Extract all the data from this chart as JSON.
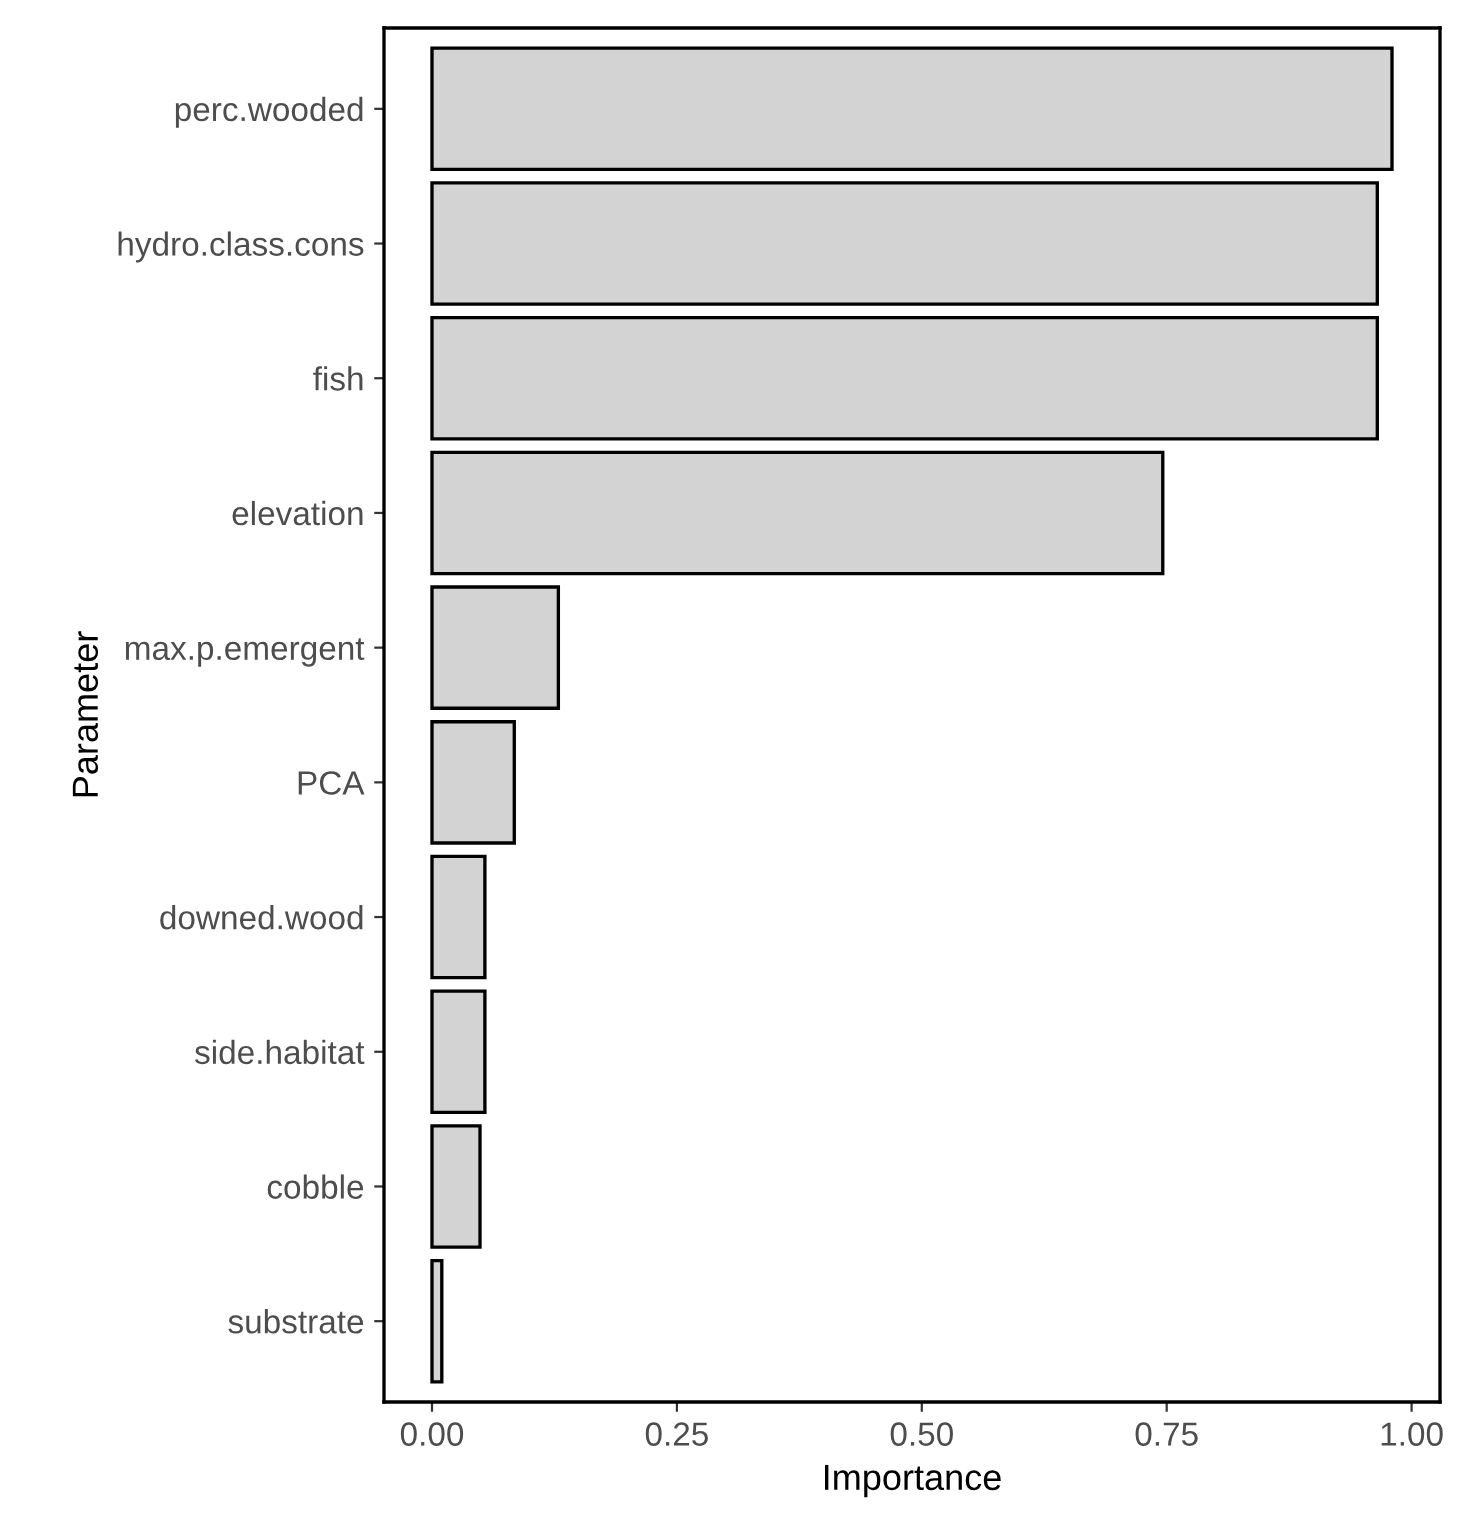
{
  "chart_data": {
    "type": "bar",
    "orientation": "horizontal",
    "xlabel": "Importance",
    "ylabel": "Parameter",
    "categories": [
      "perc.wooded",
      "hydro.class.cons",
      "fish",
      "elevation",
      "max.p.emergent",
      "PCA",
      "downed.wood",
      "side.habitat",
      "cobble",
      "substrate"
    ],
    "values": [
      0.98,
      0.965,
      0.965,
      0.746,
      0.129,
      0.084,
      0.054,
      0.054,
      0.049,
      0.01
    ],
    "color": "#d3d3d3",
    "xlim": [
      -0.049,
      1.029
    ],
    "xticks": [
      {
        "value": 0,
        "label": "0.00"
      },
      {
        "value": 0.25,
        "label": "0.25"
      },
      {
        "value": 0.5,
        "label": "0.50"
      },
      {
        "value": 0.75,
        "label": "0.75"
      },
      {
        "value": 1,
        "label": "1.00"
      }
    ],
    "grid": false
  }
}
